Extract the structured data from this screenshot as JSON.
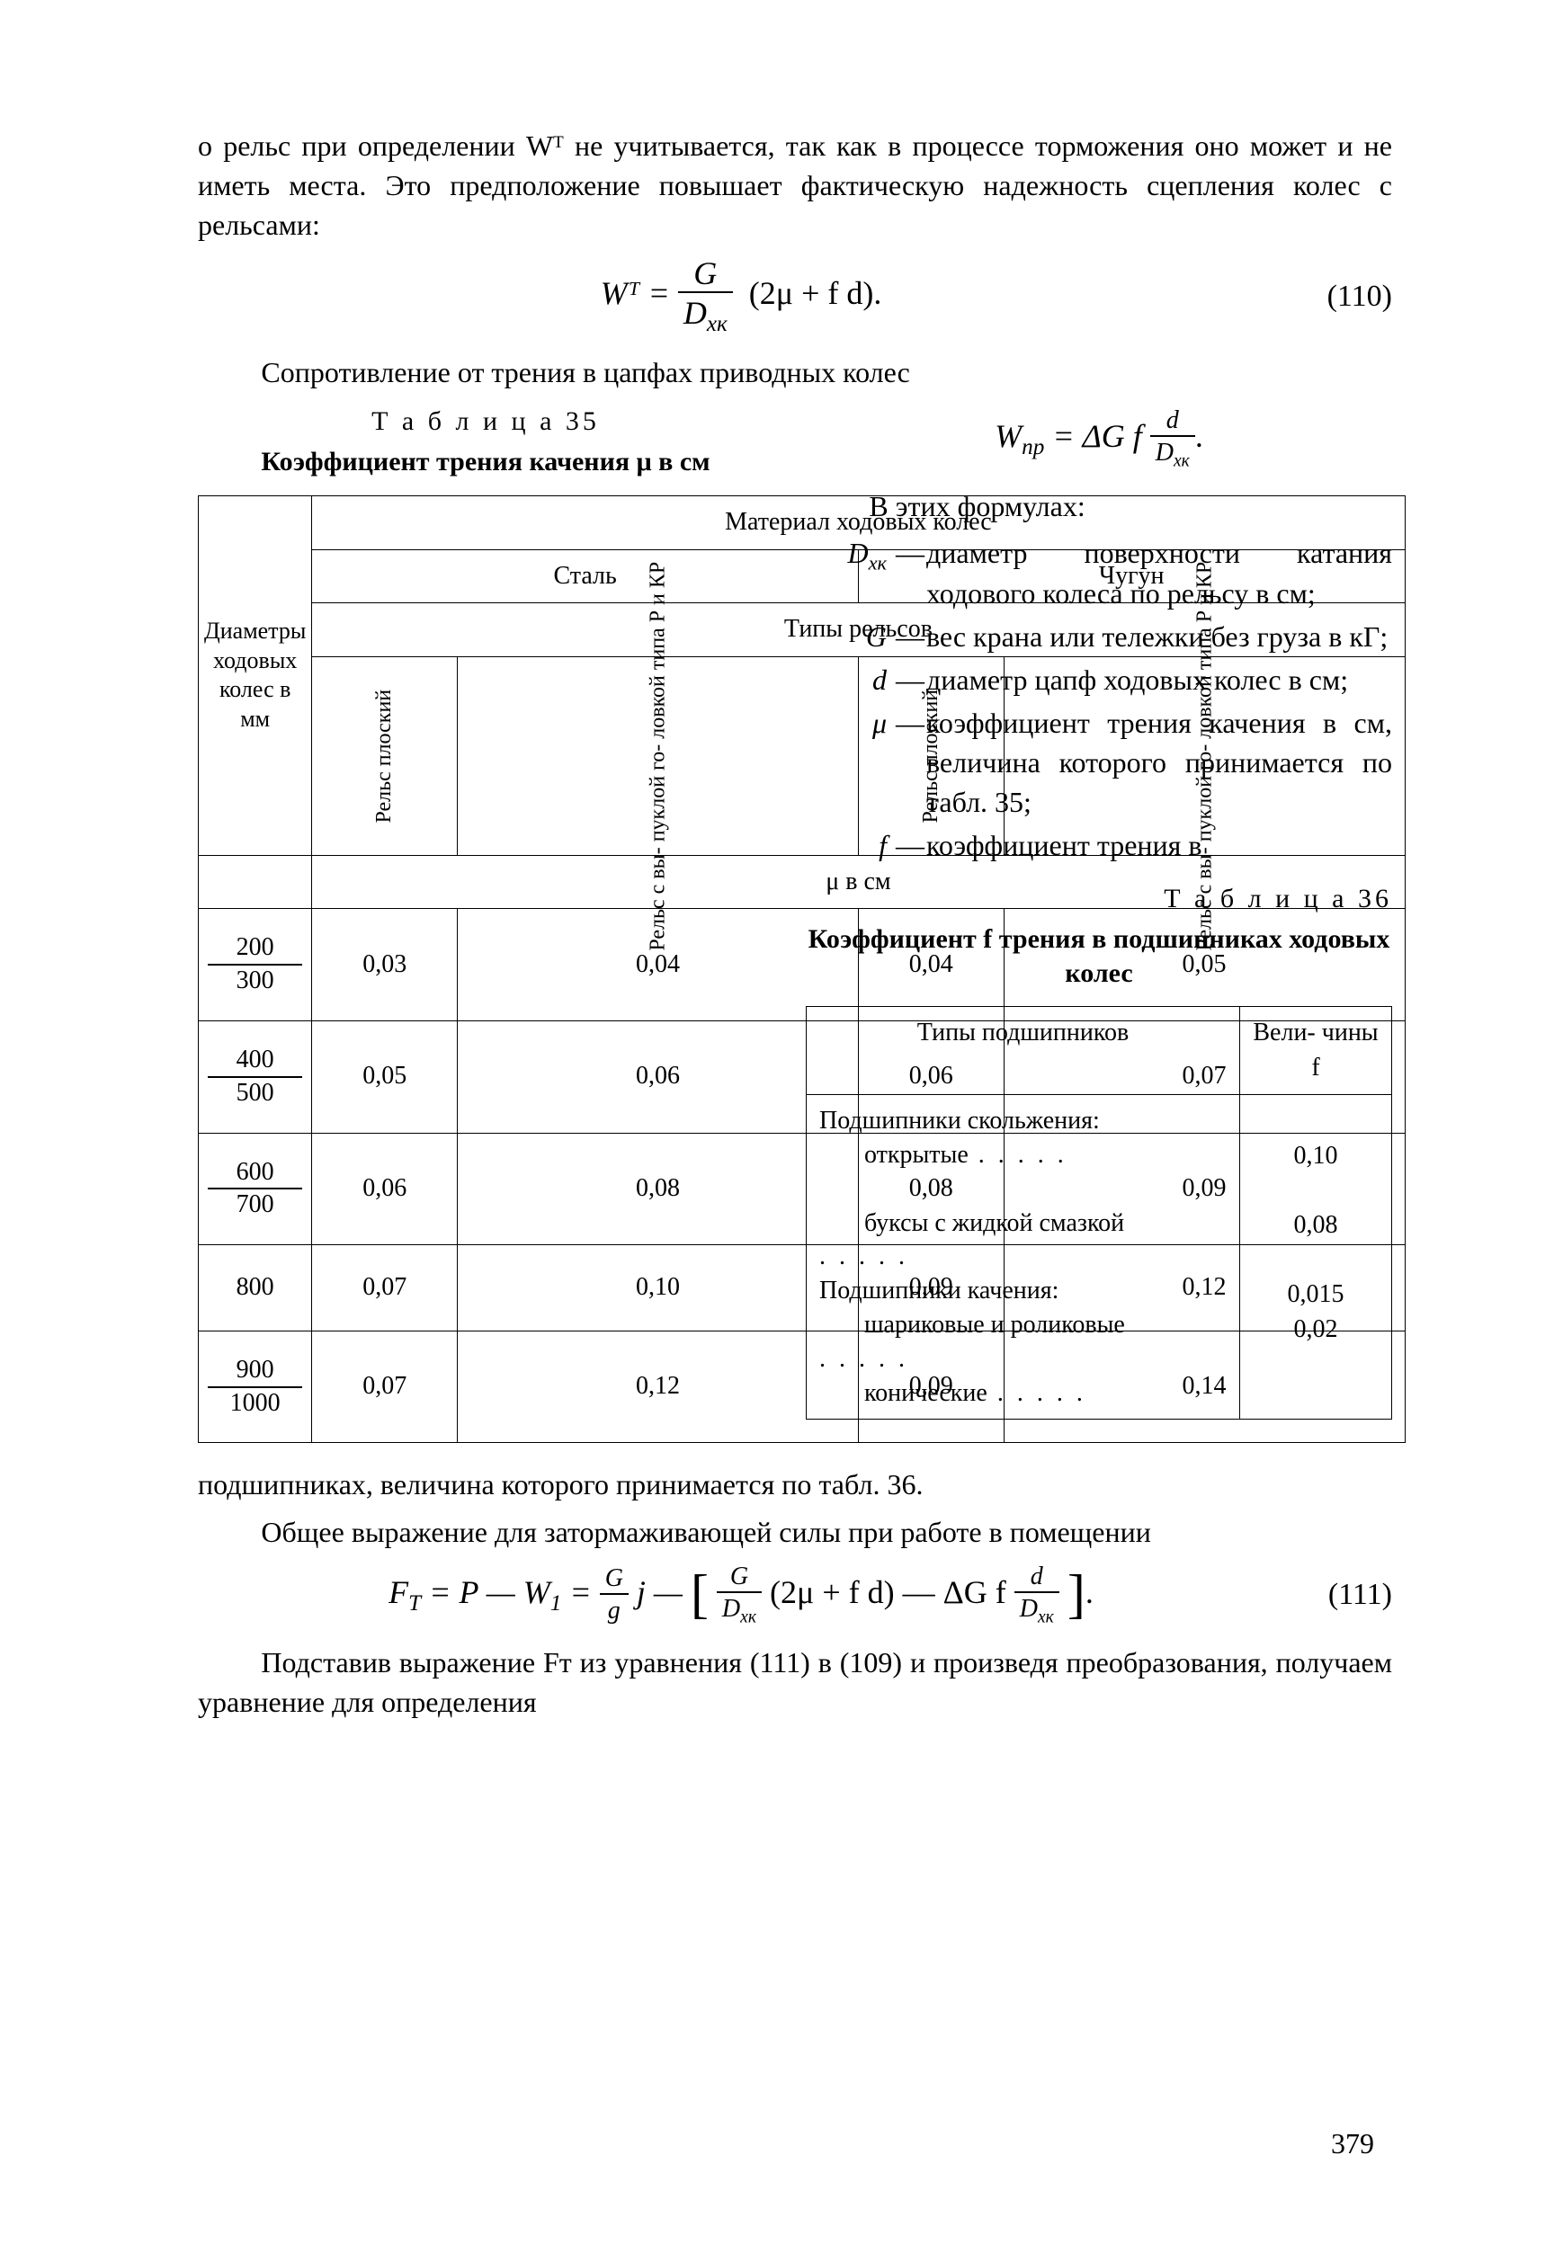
{
  "para1": "о рельс при определении Wᵀ не учитывается, так как в процессе торможения оно может и не иметь места. Это предположение повышает фактическую надежность сцепления колес с рельсами:",
  "eq110_left": "Wᵀ =",
  "eq110_frac_num": "G",
  "eq110_frac_den": "D",
  "eq110_den_sub": "хк",
  "eq110_right": "(2μ + f d).",
  "eq110_num": "(110)",
  "para2": "Сопротивление от трения в цапфах приводных колес",
  "t35_label": "Т а б л и ц а 35",
  "t35_title": "Коэффициент трения качения μ в см",
  "t35_h_material": "Материал ходовых колес",
  "t35_h_steel": "Сталь",
  "t35_h_iron": "Чугун",
  "t35_h_types": "Типы рельсов",
  "t35_rowhead": "Диаметры ходовых колес в мм",
  "t35_col_flat": "Рельс плоский",
  "t35_col_conv": "Рельс с вы- пуклой го- ловкой типа Р и КР",
  "t35_mu_cm": "μ в см",
  "t35_rows": [
    {
      "d": [
        "200",
        "300"
      ],
      "v": [
        "0,03",
        "0,04",
        "0,04",
        "0,05"
      ]
    },
    {
      "d": [
        "400",
        "500"
      ],
      "v": [
        "0,05",
        "0,06",
        "0,06",
        "0,07"
      ]
    },
    {
      "d": [
        "600",
        "700"
      ],
      "v": [
        "0,06",
        "0,08",
        "0,08",
        "0,09"
      ]
    },
    {
      "d": [
        "800",
        ""
      ],
      "v": [
        "0,07",
        "0,10",
        "0,09",
        "0,12"
      ]
    },
    {
      "d": [
        "900",
        "1000"
      ],
      "v": [
        "0,07",
        "0,12",
        "0,09",
        "0,14"
      ]
    }
  ],
  "eq_wnp_left": "W",
  "eq_wnp_sub": "np",
  "eq_wnp_mid": " = ΔG f ",
  "eq_wnp_frac_num": "d",
  "eq_wnp_frac_den": "D",
  "eq_wnp_den_sub": "хк",
  "eq_wnp_dot": ".",
  "defs_intro": "В этих формулах:",
  "defs": [
    {
      "sym": "D",
      "sub": "хк",
      "txt": "диаметр поверхности катания ходового колеса по рельсу в см;"
    },
    {
      "sym": "G",
      "sub": "",
      "txt": "вес крана или тележки без груза в кГ;"
    },
    {
      "sym": "d",
      "sub": "",
      "txt": "диаметр цапф ходовых колес в см;"
    },
    {
      "sym": "μ",
      "sub": "",
      "txt": "коэффициент трения качения в см, величина которого принимается по табл. 35;"
    },
    {
      "sym": "f",
      "sub": "",
      "txt": "коэффициент   трения   в"
    }
  ],
  "t36_label": "Т а б л и ц а 36",
  "t36_title": "Коэффициент f трения в подшипниках ходовых колес",
  "t36_h1": "Типы подшипников",
  "t36_h2": "Вели- чины f",
  "t36_r1": "Подшипники   скольже­ния:",
  "t36_r1a": "открытые",
  "t36_r1a_v": "0,10",
  "t36_r1b": "буксы   с   жидкой смазкой",
  "t36_r1b_v": "0,08",
  "t36_r2": "Подшипники качения:",
  "t36_r2a": "шариковые и роли­ковые",
  "t36_r2a_v": "0,015",
  "t36_r2b": "конические",
  "t36_r2b_v": "0,02",
  "para3": "подшипниках, величина которого принимается по табл. 36.",
  "para4": "Общее выражение для затормаживающей силы при работе в помещении",
  "eq111_a": "F",
  "eq111_a_sub": "T",
  "eq111_b": " = P — W",
  "eq111_b_sub": "1",
  "eq111_c": " = ",
  "eq111_f1_num": "G",
  "eq111_f1_den": "g",
  "eq111_d": " j — ",
  "eq111_f2_num": "G",
  "eq111_f2_den": "D",
  "eq111_f2_den_sub": "хк",
  "eq111_e": "(2μ + f d) — ΔG f ",
  "eq111_f3_num": "d",
  "eq111_f3_den": "D",
  "eq111_f3_den_sub": "хк",
  "eq111_num": "(111)",
  "para5": "Подставив выражение Fᴛ из уравнения (111) в (109) и про­изведя преобразования, получаем уравнение для определения",
  "page_number": "379"
}
